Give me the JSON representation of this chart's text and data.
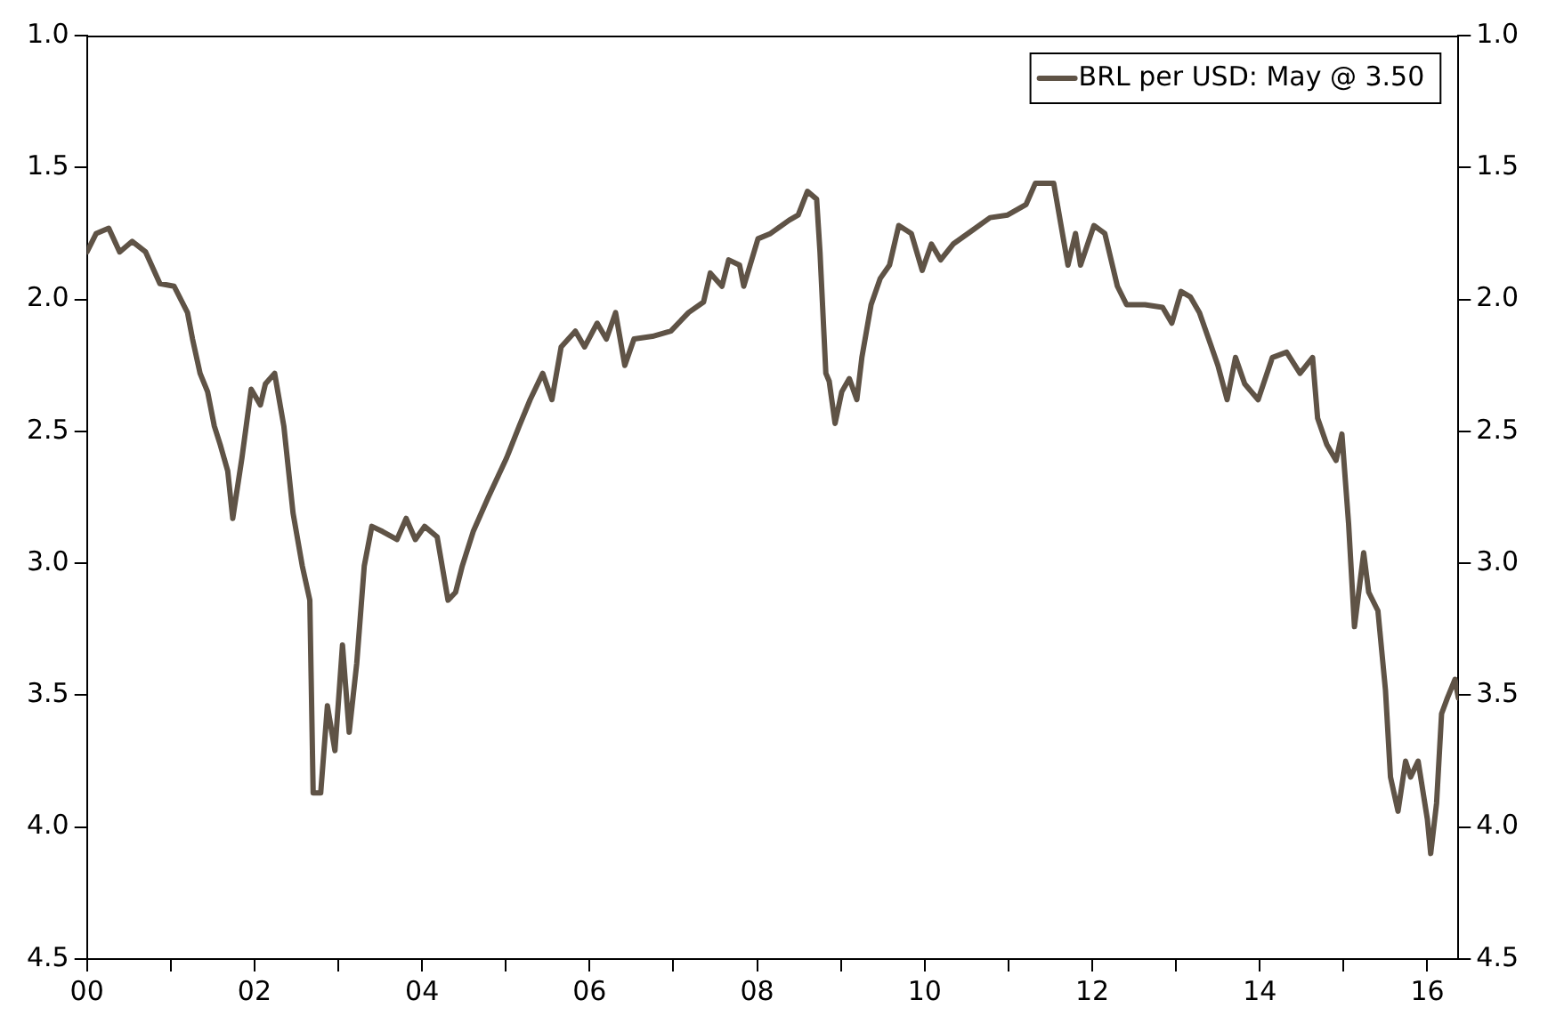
{
  "chart_data": {
    "type": "line",
    "legend": "top right",
    "grid": false,
    "marker": "none",
    "line_style": "solid",
    "x": [
      2000.0,
      2000.11,
      2000.26,
      2000.39,
      2000.54,
      2000.7,
      2000.87,
      2001.04,
      2001.2,
      2001.26,
      2001.35,
      2001.44,
      2001.52,
      2001.59,
      2001.68,
      2001.74,
      2001.85,
      2001.96,
      2002.07,
      2002.13,
      2002.24,
      2002.35,
      2002.46,
      2002.57,
      2002.66,
      2002.7,
      2002.79,
      2002.87,
      2002.96,
      2003.05,
      2003.13,
      2003.22,
      2003.31,
      2003.4,
      2003.53,
      2003.7,
      2003.81,
      2003.92,
      2004.03,
      2004.18,
      2004.31,
      2004.4,
      2004.48,
      2004.61,
      2004.79,
      2005.01,
      2005.16,
      2005.29,
      2005.44,
      2005.55,
      2005.66,
      2005.83,
      2005.94,
      2006.09,
      2006.2,
      2006.31,
      2006.42,
      2006.53,
      2006.75,
      2006.97,
      2007.18,
      2007.36,
      2007.44,
      2007.58,
      2007.66,
      2007.79,
      2007.84,
      2008.01,
      2008.16,
      2008.38,
      2008.49,
      2008.6,
      2008.71,
      2008.75,
      2008.82,
      2008.86,
      2008.93,
      2009.01,
      2009.1,
      2009.19,
      2009.25,
      2009.36,
      2009.47,
      2009.58,
      2009.69,
      2009.84,
      2009.97,
      2010.08,
      2010.19,
      2010.34,
      2010.56,
      2010.78,
      2010.99,
      2011.21,
      2011.32,
      2011.54,
      2011.71,
      2011.8,
      2011.86,
      2012.02,
      2012.15,
      2012.3,
      2012.41,
      2012.63,
      2012.84,
      2012.95,
      2013.06,
      2013.17,
      2013.28,
      2013.39,
      2013.5,
      2013.61,
      2013.71,
      2013.82,
      2013.98,
      2014.15,
      2014.32,
      2014.48,
      2014.63,
      2014.69,
      2014.8,
      2014.91,
      2014.98,
      2015.06,
      2015.13,
      2015.24,
      2015.3,
      2015.41,
      2015.5,
      2015.56,
      2015.65,
      2015.74,
      2015.8,
      2015.89,
      2016.0,
      2016.04,
      2016.11,
      2016.17,
      2016.24,
      2016.33,
      2016.37
    ],
    "series": [
      {
        "name": "BRL per USD: May @ 3.50",
        "color": "#5f5346",
        "values": [
          1.82,
          1.75,
          1.73,
          1.82,
          1.78,
          1.82,
          1.94,
          1.95,
          2.05,
          2.15,
          2.28,
          2.35,
          2.48,
          2.55,
          2.65,
          2.83,
          2.6,
          2.34,
          2.4,
          2.32,
          2.28,
          2.48,
          2.81,
          3.01,
          3.14,
          3.87,
          3.87,
          3.54,
          3.71,
          3.31,
          3.64,
          3.38,
          3.01,
          2.86,
          2.88,
          2.91,
          2.83,
          2.91,
          2.86,
          2.9,
          3.14,
          3.11,
          3.01,
          2.88,
          2.75,
          2.6,
          2.48,
          2.38,
          2.28,
          2.38,
          2.18,
          2.12,
          2.18,
          2.09,
          2.15,
          2.05,
          2.25,
          2.15,
          2.14,
          2.12,
          2.05,
          2.01,
          1.9,
          1.95,
          1.85,
          1.87,
          1.95,
          1.77,
          1.75,
          1.7,
          1.68,
          1.59,
          1.62,
          1.82,
          2.28,
          2.31,
          2.47,
          2.35,
          2.3,
          2.38,
          2.22,
          2.02,
          1.92,
          1.87,
          1.72,
          1.75,
          1.89,
          1.79,
          1.85,
          1.79,
          1.74,
          1.69,
          1.68,
          1.64,
          1.56,
          1.56,
          1.87,
          1.75,
          1.87,
          1.72,
          1.75,
          1.95,
          2.02,
          2.02,
          2.03,
          2.09,
          1.97,
          1.99,
          2.05,
          2.15,
          2.25,
          2.38,
          2.22,
          2.32,
          2.38,
          2.22,
          2.2,
          2.28,
          2.22,
          2.45,
          2.55,
          2.61,
          2.51,
          2.85,
          3.24,
          2.96,
          3.11,
          3.18,
          3.48,
          3.81,
          3.94,
          3.75,
          3.81,
          3.75,
          3.97,
          4.1,
          3.91,
          3.57,
          3.51,
          3.44,
          3.51
        ]
      }
    ],
    "xlim": [
      2000,
      2016.37
    ],
    "xticks": [
      {
        "value": 2000,
        "label": "00"
      },
      {
        "value": 2001,
        "label": null
      },
      {
        "value": 2002,
        "label": "02"
      },
      {
        "value": 2003,
        "label": null
      },
      {
        "value": 2004,
        "label": "04"
      },
      {
        "value": 2005,
        "label": null
      },
      {
        "value": 2006,
        "label": "06"
      },
      {
        "value": 2007,
        "label": null
      },
      {
        "value": 2008,
        "label": "08"
      },
      {
        "value": 2009,
        "label": null
      },
      {
        "value": 2010,
        "label": "10"
      },
      {
        "value": 2011,
        "label": null
      },
      {
        "value": 2012,
        "label": "12"
      },
      {
        "value": 2013,
        "label": null
      },
      {
        "value": 2014,
        "label": "14"
      },
      {
        "value": 2015,
        "label": null
      },
      {
        "value": 2016,
        "label": "16"
      }
    ],
    "ylim": [
      4.5,
      1.0
    ],
    "yticks": [
      {
        "value": 1,
        "label": "1.0"
      },
      {
        "value": 1.5,
        "label": "1.5"
      },
      {
        "value": 2,
        "label": "2.0"
      },
      {
        "value": 2.5,
        "label": "2.5"
      },
      {
        "value": 3,
        "label": "3.0"
      },
      {
        "value": 3.5,
        "label": "3.5"
      },
      {
        "value": 4,
        "label": "4.0"
      },
      {
        "value": 4.5,
        "label": "4.5"
      }
    ],
    "y2lim": [
      4.5,
      1.0
    ],
    "y2ticks": [
      {
        "value": 1,
        "label": "1.0"
      },
      {
        "value": 1.5,
        "label": "1.5"
      },
      {
        "value": 2,
        "label": "2.0"
      },
      {
        "value": 2.5,
        "label": "2.5"
      },
      {
        "value": 3,
        "label": "3.0"
      },
      {
        "value": 3.5,
        "label": "3.5"
      },
      {
        "value": 4,
        "label": "4.0"
      },
      {
        "value": 4.5,
        "label": "4.5"
      }
    ]
  }
}
